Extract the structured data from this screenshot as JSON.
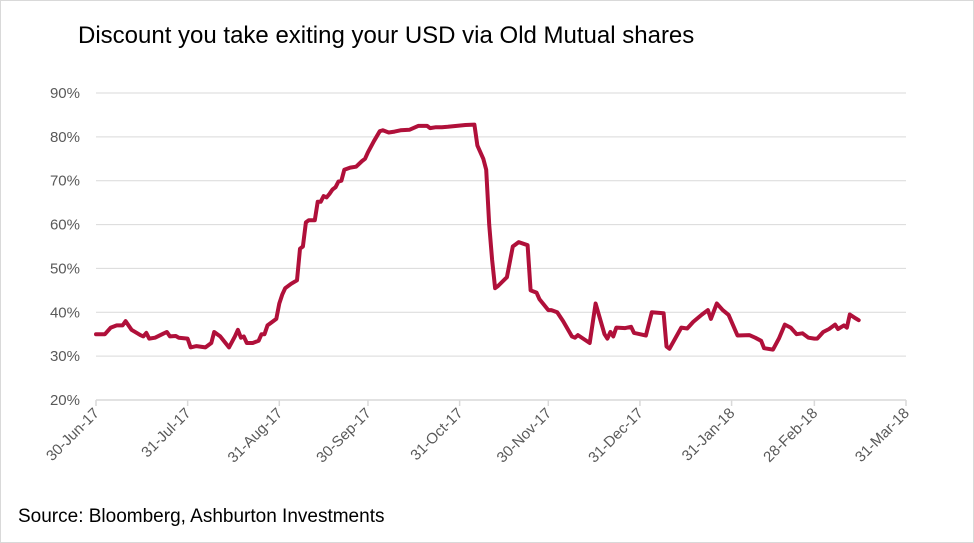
{
  "title": "Discount you take exiting your USD via Old Mutual shares",
  "source": "Source: Bloomberg, Ashburton Investments",
  "chart_data": {
    "type": "line",
    "title": "Discount you take exiting your USD via Old Mutual shares",
    "xlabel": "",
    "ylabel": "",
    "x_range": [
      "2017-06-30",
      "2018-03-31"
    ],
    "y_range": [
      20,
      90
    ],
    "y_ticks": [
      "20%",
      "30%",
      "40%",
      "50%",
      "60%",
      "70%",
      "80%",
      "90%"
    ],
    "x_ticks": [
      "30-Jun-17",
      "31-Jul-17",
      "31-Aug-17",
      "30-Sep-17",
      "31-Oct-17",
      "30-Nov-17",
      "31-Dec-17",
      "31-Jan-18",
      "28-Feb-18",
      "31-Mar-18"
    ],
    "grid": "horizontal",
    "color": "#b0103a",
    "series": [
      {
        "points": [
          [
            "2017-06-30",
            35
          ],
          [
            "2017-07-03",
            35
          ],
          [
            "2017-07-05",
            36.5
          ],
          [
            "2017-07-07",
            37
          ],
          [
            "2017-07-09",
            37
          ],
          [
            "2017-07-10",
            38
          ],
          [
            "2017-07-12",
            36
          ],
          [
            "2017-07-14",
            35.2
          ],
          [
            "2017-07-15",
            34.8
          ],
          [
            "2017-07-16",
            34.5
          ],
          [
            "2017-07-17",
            35.3
          ],
          [
            "2017-07-18",
            34
          ],
          [
            "2017-07-20",
            34.2
          ],
          [
            "2017-07-23",
            35.2
          ],
          [
            "2017-07-24",
            35.5
          ],
          [
            "2017-07-25",
            34.5
          ],
          [
            "2017-07-27",
            34.6
          ],
          [
            "2017-07-28",
            34.2
          ],
          [
            "2017-07-31",
            34
          ],
          [
            "2017-08-01",
            32
          ],
          [
            "2017-08-03",
            32.3
          ],
          [
            "2017-08-06",
            32
          ],
          [
            "2017-08-08",
            33
          ],
          [
            "2017-08-09",
            35.5
          ],
          [
            "2017-08-11",
            34.5
          ],
          [
            "2017-08-14",
            32
          ],
          [
            "2017-08-16",
            34.5
          ],
          [
            "2017-08-17",
            36
          ],
          [
            "2017-08-18",
            34.2
          ],
          [
            "2017-08-19",
            34.5
          ],
          [
            "2017-08-20",
            33
          ],
          [
            "2017-08-22",
            33
          ],
          [
            "2017-08-24",
            33.5
          ],
          [
            "2017-08-25",
            35
          ],
          [
            "2017-08-26",
            35
          ],
          [
            "2017-08-27",
            37
          ],
          [
            "2017-08-28",
            37.5
          ],
          [
            "2017-08-30",
            38.5
          ],
          [
            "2017-08-31",
            42
          ],
          [
            "2017-09-01",
            44
          ],
          [
            "2017-09-02",
            45.5
          ],
          [
            "2017-09-04",
            46.5
          ],
          [
            "2017-09-06",
            47.3
          ],
          [
            "2017-09-07",
            54.5
          ],
          [
            "2017-09-08",
            55
          ],
          [
            "2017-09-09",
            60.5
          ],
          [
            "2017-09-10",
            61
          ],
          [
            "2017-09-12",
            61
          ],
          [
            "2017-09-13",
            65.2
          ],
          [
            "2017-09-14",
            65.2
          ],
          [
            "2017-09-15",
            66.5
          ],
          [
            "2017-09-16",
            66.2
          ],
          [
            "2017-09-17",
            67
          ],
          [
            "2017-09-18",
            68
          ],
          [
            "2017-09-19",
            68.5
          ],
          [
            "2017-09-20",
            69.8
          ],
          [
            "2017-09-21",
            70
          ],
          [
            "2017-09-22",
            72.5
          ],
          [
            "2017-09-24",
            73
          ],
          [
            "2017-09-26",
            73.2
          ],
          [
            "2017-09-28",
            74.5
          ],
          [
            "2017-09-29",
            75
          ],
          [
            "2017-09-30",
            76.5
          ],
          [
            "2017-10-02",
            79
          ],
          [
            "2017-10-04",
            81.3
          ],
          [
            "2017-10-05",
            81.5
          ],
          [
            "2017-10-07",
            81
          ],
          [
            "2017-10-09",
            81.2
          ],
          [
            "2017-10-11",
            81.5
          ],
          [
            "2017-10-14",
            81.6
          ],
          [
            "2017-10-17",
            82.5
          ],
          [
            "2017-10-20",
            82.5
          ],
          [
            "2017-10-21",
            82
          ],
          [
            "2017-10-23",
            82.2
          ],
          [
            "2017-10-25",
            82.2
          ],
          [
            "2017-10-27",
            82.3
          ],
          [
            "2017-10-30",
            82.5
          ],
          [
            "2017-11-02",
            82.7
          ],
          [
            "2017-11-05",
            82.8
          ],
          [
            "2017-11-06",
            78
          ],
          [
            "2017-11-08",
            75
          ],
          [
            "2017-11-09",
            72.5
          ],
          [
            "2017-11-10",
            60
          ],
          [
            "2017-11-11",
            52
          ],
          [
            "2017-11-12",
            45.5
          ],
          [
            "2017-11-13",
            46
          ],
          [
            "2017-11-16",
            48
          ],
          [
            "2017-11-18",
            55
          ],
          [
            "2017-11-20",
            56
          ],
          [
            "2017-11-23",
            55.3
          ],
          [
            "2017-11-24",
            45
          ],
          [
            "2017-11-26",
            44.5
          ],
          [
            "2017-11-27",
            43
          ],
          [
            "2017-11-30",
            40.5
          ],
          [
            "2017-12-01",
            40.5
          ],
          [
            "2017-12-03",
            40
          ],
          [
            "2017-12-05",
            38
          ],
          [
            "2017-12-08",
            34.5
          ],
          [
            "2017-12-09",
            34.2
          ],
          [
            "2017-12-10",
            34.8
          ],
          [
            "2017-12-14",
            33
          ],
          [
            "2017-12-16",
            42
          ],
          [
            "2017-12-19",
            35
          ],
          [
            "2017-12-20",
            34
          ],
          [
            "2017-12-21",
            35.5
          ],
          [
            "2017-12-22",
            34.5
          ],
          [
            "2017-12-23",
            36.5
          ],
          [
            "2017-12-26",
            36.4
          ],
          [
            "2017-12-28",
            36.7
          ],
          [
            "2017-12-29",
            35.3
          ],
          [
            "2017-12-31",
            35
          ],
          [
            "2018-01-02",
            34.7
          ],
          [
            "2018-01-04",
            40
          ],
          [
            "2018-01-08",
            39.8
          ],
          [
            "2018-01-09",
            32.2
          ],
          [
            "2018-01-10",
            31.7
          ],
          [
            "2018-01-14",
            36.5
          ],
          [
            "2018-01-16",
            36.3
          ],
          [
            "2018-01-18",
            37.8
          ],
          [
            "2018-01-21",
            39.5
          ],
          [
            "2018-01-23",
            40.5
          ],
          [
            "2018-01-24",
            38.5
          ],
          [
            "2018-01-26",
            42
          ],
          [
            "2018-01-28",
            40.5
          ],
          [
            "2018-01-30",
            39.4
          ],
          [
            "2018-02-02",
            34.7
          ],
          [
            "2018-02-06",
            34.8
          ],
          [
            "2018-02-08",
            34.2
          ],
          [
            "2018-02-10",
            33.5
          ],
          [
            "2018-02-11",
            31.8
          ],
          [
            "2018-02-14",
            31.5
          ],
          [
            "2018-02-16",
            34
          ],
          [
            "2018-02-18",
            37.2
          ],
          [
            "2018-02-20",
            36.5
          ],
          [
            "2018-02-22",
            35
          ],
          [
            "2018-02-24",
            35.2
          ],
          [
            "2018-02-26",
            34.2
          ],
          [
            "2018-02-28",
            34
          ],
          [
            "2018-03-01",
            34
          ],
          [
            "2018-03-03",
            35.5
          ],
          [
            "2018-03-05",
            36.2
          ],
          [
            "2018-03-07",
            37.2
          ],
          [
            "2018-03-08",
            36.2
          ],
          [
            "2018-03-10",
            37
          ],
          [
            "2018-03-11",
            36.5
          ],
          [
            "2018-03-12",
            39.5
          ],
          [
            "2018-03-14",
            38.6
          ],
          [
            "2018-03-15",
            38.2
          ]
        ]
      }
    ]
  }
}
